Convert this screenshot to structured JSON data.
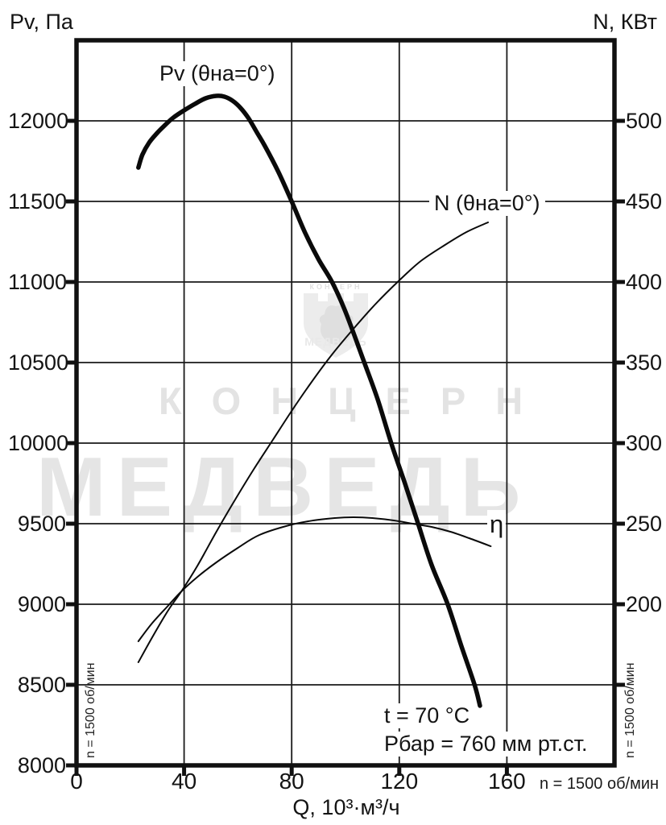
{
  "colors": {
    "curve": "#0a0a0a",
    "grid": "#1a1a1a",
    "border": "#111111",
    "watermark": "#e5e5e5",
    "text": "#141414"
  },
  "watermark": {
    "line1": "КОНЦЕРН",
    "line2": "МЕДВЕДЬ",
    "logo": "bear-shield-logo",
    "logo_top_text": "КОНЦЕРН",
    "logo_bottom_text": "МЕДВЕДЬ"
  },
  "labels": {
    "left_axis_title": "Pv, Па",
    "right_axis_title": "N, КВт",
    "x_axis_title": "Q, 10³·м³/ч",
    "pv_curve": "Pv (θна=0°)",
    "n_curve": "N (θна=0°)",
    "eta_curve": "η",
    "temperature_note": "t = 70 °C",
    "pressure_note": "Рбар = 760 мм рт.ст.",
    "rpm_left_vertical": "n = 1500 об/мин",
    "rpm_right_vertical": "n = 1500 об/мин",
    "rpm_bottom": "n = 1500 об/мин"
  },
  "chart_data": {
    "type": "line",
    "title": "",
    "xlabel": "Q, 10³·м³/ч",
    "grid": true,
    "x_axis": {
      "range": [
        0,
        200
      ],
      "ticks": [
        0,
        40,
        80,
        120,
        160
      ],
      "gridlines": [
        40,
        80,
        120,
        160
      ]
    },
    "left_axis": {
      "label": "Pv, Па",
      "range": [
        8000,
        12500
      ],
      "ticks": [
        8000,
        8500,
        9000,
        9500,
        10000,
        10500,
        11000,
        11500,
        12000
      ],
      "gridlines": [
        8500,
        9000,
        9500,
        10000,
        10500,
        11000,
        11500,
        12000
      ]
    },
    "right_axis": {
      "label": "N, КВт",
      "range": [
        100,
        550
      ],
      "ticks": [
        200,
        250,
        300,
        350,
        400,
        450,
        500
      ],
      "unlabeled_ticks": [
        150
      ]
    },
    "annotations": [
      "t = 70 °C",
      "Рбар = 760 мм рт.ст.",
      "n = 1500 об/мин"
    ],
    "series": [
      {
        "key": "pv",
        "name": "Pv (θна=0°)",
        "axis": "left",
        "style": "thick",
        "points": [
          [
            23,
            11710
          ],
          [
            24.5,
            11790
          ],
          [
            27,
            11865
          ],
          [
            30,
            11925
          ],
          [
            33,
            11975
          ],
          [
            36,
            12020
          ],
          [
            40,
            12065
          ],
          [
            44,
            12105
          ],
          [
            48,
            12140
          ],
          [
            52,
            12155
          ],
          [
            55,
            12150
          ],
          [
            58,
            12125
          ],
          [
            61,
            12080
          ],
          [
            64,
            12015
          ],
          [
            67,
            11930
          ],
          [
            70,
            11845
          ],
          [
            75,
            11685
          ],
          [
            80,
            11500
          ],
          [
            85,
            11305
          ],
          [
            90,
            11140
          ],
          [
            95,
            11000
          ],
          [
            100,
            10815
          ],
          [
            107,
            10500
          ],
          [
            112,
            10270
          ],
          [
            117,
            10000
          ],
          [
            122,
            9755
          ],
          [
            127,
            9500
          ],
          [
            132,
            9245
          ],
          [
            138,
            9000
          ],
          [
            143,
            8745
          ],
          [
            148,
            8500
          ],
          [
            150,
            8370
          ]
        ]
      },
      {
        "key": "n",
        "name": "N (θна=0°)",
        "axis": "right",
        "style": "thin",
        "points": [
          [
            23,
            164
          ],
          [
            28,
            179
          ],
          [
            34,
            196
          ],
          [
            39,
            208
          ],
          [
            45,
            224
          ],
          [
            52,
            245
          ],
          [
            59,
            265
          ],
          [
            66,
            284
          ],
          [
            73,
            302
          ],
          [
            80,
            320
          ],
          [
            87,
            337
          ],
          [
            95,
            355
          ],
          [
            103,
            371
          ],
          [
            111,
            386
          ],
          [
            120,
            401
          ],
          [
            128,
            413
          ],
          [
            137,
            423
          ],
          [
            145,
            431
          ],
          [
            153,
            437
          ]
        ]
      },
      {
        "key": "eta",
        "name": "η",
        "axis": "right",
        "style": "thin",
        "note": "efficiency curve; no visible scale on chart, values given in right-axis units",
        "points": [
          [
            23,
            177
          ],
          [
            28,
            188
          ],
          [
            34,
            199
          ],
          [
            39,
            208
          ],
          [
            45,
            217
          ],
          [
            52,
            226
          ],
          [
            60,
            235
          ],
          [
            68,
            243
          ],
          [
            79,
            249
          ],
          [
            88,
            252
          ],
          [
            96,
            253.5
          ],
          [
            103,
            254
          ],
          [
            110,
            253.5
          ],
          [
            118,
            252
          ],
          [
            125,
            250
          ],
          [
            132,
            248
          ],
          [
            139,
            245
          ],
          [
            146,
            241
          ],
          [
            154,
            236
          ]
        ]
      }
    ]
  }
}
